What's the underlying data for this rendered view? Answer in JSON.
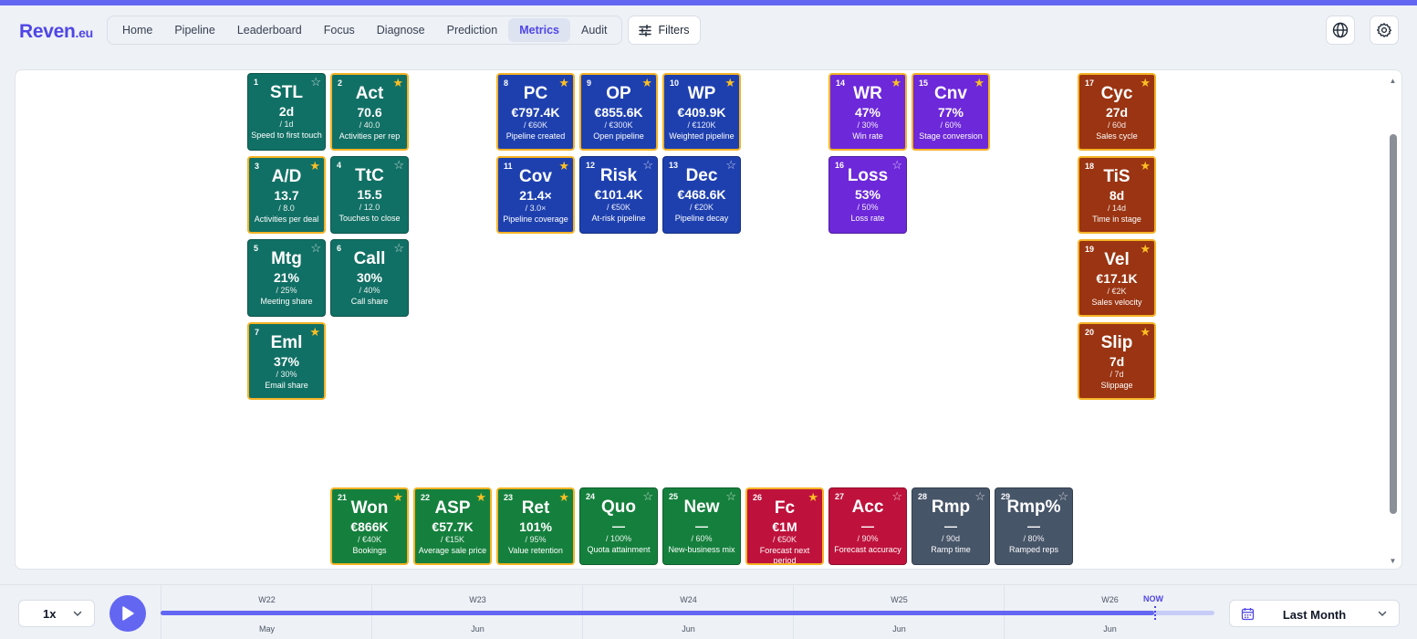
{
  "app": {
    "logo_main": "Reven",
    "logo_tld": ".eu"
  },
  "nav": {
    "items": [
      {
        "label": "Home",
        "active": false
      },
      {
        "label": "Pipeline",
        "active": false
      },
      {
        "label": "Leaderboard",
        "active": false
      },
      {
        "label": "Focus",
        "active": false
      },
      {
        "label": "Diagnose",
        "active": false
      },
      {
        "label": "Prediction",
        "active": false
      },
      {
        "label": "Metrics",
        "active": true
      },
      {
        "label": "Audit",
        "active": false
      }
    ],
    "filters_label": "Filters"
  },
  "header_icons": [
    "globe-icon",
    "gear-icon"
  ],
  "colors": {
    "accent": "#6366f1",
    "teal": "#117065",
    "blue": "#1e40af",
    "purple": "#6d28d9",
    "rust": "#9a3412",
    "green": "#15803d",
    "red": "#be123c",
    "slate": "#475569",
    "star": "#fbbf24"
  },
  "metrics": [
    {
      "num": "1",
      "symbol": "STL",
      "value": "2d",
      "target": "/ 1d",
      "label": "Speed to first touch",
      "starred": false,
      "group": "teal"
    },
    {
      "num": "2",
      "symbol": "Act",
      "value": "70.6",
      "target": "/ 40.0",
      "label": "Activities per rep",
      "starred": true,
      "group": "teal"
    },
    {
      "num": "3",
      "symbol": "A/D",
      "value": "13.7",
      "target": "/ 8.0",
      "label": "Activities per deal",
      "starred": true,
      "group": "teal"
    },
    {
      "num": "4",
      "symbol": "TtC",
      "value": "15.5",
      "target": "/ 12.0",
      "label": "Touches to close",
      "starred": false,
      "group": "teal"
    },
    {
      "num": "5",
      "symbol": "Mtg",
      "value": "21%",
      "target": "/ 25%",
      "label": "Meeting share",
      "starred": false,
      "group": "teal"
    },
    {
      "num": "6",
      "symbol": "Call",
      "value": "30%",
      "target": "/ 40%",
      "label": "Call share",
      "starred": false,
      "group": "teal"
    },
    {
      "num": "7",
      "symbol": "Eml",
      "value": "37%",
      "target": "/ 30%",
      "label": "Email share",
      "starred": true,
      "group": "teal"
    },
    {
      "num": "8",
      "symbol": "PC",
      "value": "€797.4K",
      "target": "/ €60K",
      "label": "Pipeline created",
      "starred": true,
      "group": "blue"
    },
    {
      "num": "9",
      "symbol": "OP",
      "value": "€855.6K",
      "target": "/ €300K",
      "label": "Open pipeline",
      "starred": true,
      "group": "blue"
    },
    {
      "num": "10",
      "symbol": "WP",
      "value": "€409.9K",
      "target": "/ €120K",
      "label": "Weighted pipeline",
      "starred": true,
      "group": "blue"
    },
    {
      "num": "11",
      "symbol": "Cov",
      "value": "21.4×",
      "target": "/ 3.0×",
      "label": "Pipeline coverage",
      "starred": true,
      "group": "blue"
    },
    {
      "num": "12",
      "symbol": "Risk",
      "value": "€101.4K",
      "target": "/ €50K",
      "label": "At-risk pipeline",
      "starred": false,
      "group": "blue"
    },
    {
      "num": "13",
      "symbol": "Dec",
      "value": "€468.6K",
      "target": "/ €20K",
      "label": "Pipeline decay",
      "starred": false,
      "group": "blue"
    },
    {
      "num": "14",
      "symbol": "WR",
      "value": "47%",
      "target": "/ 30%",
      "label": "Win rate",
      "starred": true,
      "group": "purple"
    },
    {
      "num": "15",
      "symbol": "Cnv",
      "value": "77%",
      "target": "/ 60%",
      "label": "Stage conversion",
      "starred": true,
      "group": "purple"
    },
    {
      "num": "16",
      "symbol": "Loss",
      "value": "53%",
      "target": "/ 50%",
      "label": "Loss rate",
      "starred": false,
      "group": "purple"
    },
    {
      "num": "17",
      "symbol": "Cyc",
      "value": "27d",
      "target": "/ 60d",
      "label": "Sales cycle",
      "starred": true,
      "group": "rust"
    },
    {
      "num": "18",
      "symbol": "TiS",
      "value": "8d",
      "target": "/ 14d",
      "label": "Time in stage",
      "starred": true,
      "group": "rust"
    },
    {
      "num": "19",
      "symbol": "Vel",
      "value": "€17.1K",
      "target": "/ €2K",
      "label": "Sales velocity",
      "starred": true,
      "group": "rust"
    },
    {
      "num": "20",
      "symbol": "Slip",
      "value": "7d",
      "target": "/ 7d",
      "label": "Slippage",
      "starred": true,
      "group": "rust"
    },
    {
      "num": "21",
      "symbol": "Won",
      "value": "€866K",
      "target": "/ €40K",
      "label": "Bookings",
      "starred": true,
      "group": "green"
    },
    {
      "num": "22",
      "symbol": "ASP",
      "value": "€57.7K",
      "target": "/ €15K",
      "label": "Average sale price",
      "starred": true,
      "group": "green"
    },
    {
      "num": "23",
      "symbol": "Ret",
      "value": "101%",
      "target": "/ 95%",
      "label": "Value retention",
      "starred": true,
      "group": "green"
    },
    {
      "num": "24",
      "symbol": "Quo",
      "value": "—",
      "target": "/ 100%",
      "label": "Quota attainment",
      "starred": false,
      "group": "green"
    },
    {
      "num": "25",
      "symbol": "New",
      "value": "—",
      "target": "/ 60%",
      "label": "New-business mix",
      "starred": false,
      "group": "green"
    },
    {
      "num": "26",
      "symbol": "Fc",
      "value": "€1M",
      "target": "/ €50K",
      "label": "Forecast next period",
      "starred": true,
      "group": "red"
    },
    {
      "num": "27",
      "symbol": "Acc",
      "value": "—",
      "target": "/ 90%",
      "label": "Forecast accuracy",
      "starred": false,
      "group": "red"
    },
    {
      "num": "28",
      "symbol": "Rmp",
      "value": "—",
      "target": "/ 90d",
      "label": "Ramp time",
      "starred": false,
      "group": "slate"
    },
    {
      "num": "29",
      "symbol": "Rmp%",
      "value": "—",
      "target": "/ 80%",
      "label": "Ramped reps",
      "starred": false,
      "group": "slate"
    }
  ],
  "playback": {
    "speed": "1x",
    "weeks": [
      {
        "week": "W22",
        "month": "May"
      },
      {
        "week": "W23",
        "month": "Jun"
      },
      {
        "week": "W24",
        "month": "Jun"
      },
      {
        "week": "W25",
        "month": "Jun"
      },
      {
        "week": "W26",
        "month": "Jun"
      }
    ],
    "now_label": "NOW",
    "progress": 0.943,
    "period": "Last Month"
  }
}
